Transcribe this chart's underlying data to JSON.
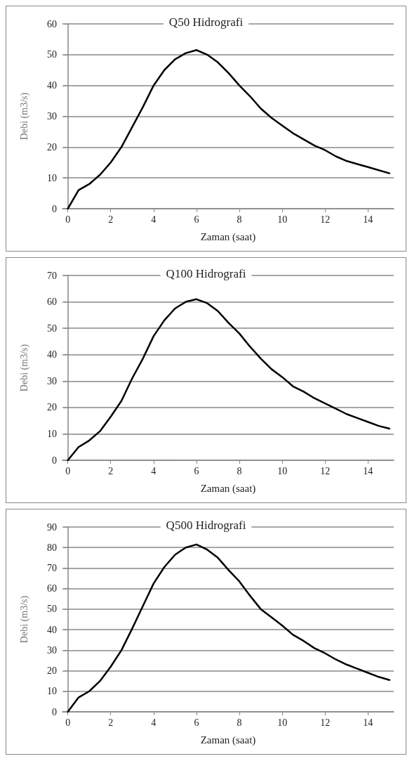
{
  "chart_data": [
    {
      "type": "line",
      "title": "Q50 Hidrografi",
      "xlabel": "Zaman (saat)",
      "ylabel": "Debi (m3/s)",
      "color": "#000000",
      "grid": "y",
      "xlim": [
        -0.25,
        15.2
      ],
      "xticks": [
        0,
        2,
        4,
        6,
        8,
        10,
        12,
        14
      ],
      "ylim": [
        0,
        60
      ],
      "yticks": [
        0,
        10,
        20,
        30,
        40,
        50,
        60
      ],
      "x": [
        0,
        0.5,
        1,
        1.5,
        2,
        2.5,
        3,
        3.5,
        4,
        4.5,
        5,
        5.5,
        6,
        6.5,
        7,
        7.5,
        8,
        8.5,
        9,
        9.5,
        10,
        10.5,
        11,
        11.5,
        12,
        12.5,
        13,
        13.5,
        14,
        14.5,
        15
      ],
      "values": [
        0,
        6,
        8,
        11,
        15,
        20,
        26.5,
        33,
        40,
        45,
        48.5,
        50.5,
        51.5,
        50,
        47.5,
        44,
        40,
        36.5,
        32.5,
        29.5,
        27,
        24.5,
        22.5,
        20.5,
        19,
        17,
        15.5,
        14.5,
        13.5,
        12.5,
        11.5
      ]
    },
    {
      "type": "line",
      "title": "Q100 Hidrografi",
      "xlabel": "Zaman (saat)",
      "ylabel": "Debi (m3/s)",
      "color": "#000000",
      "grid": "y",
      "xlim": [
        -0.25,
        15.2
      ],
      "xticks": [
        0,
        2,
        4,
        6,
        8,
        10,
        12,
        14
      ],
      "ylim": [
        0,
        70
      ],
      "yticks": [
        0,
        10,
        20,
        30,
        40,
        50,
        60,
        70
      ],
      "x": [
        0,
        0.5,
        1,
        1.5,
        2,
        2.5,
        3,
        3.5,
        4,
        4.5,
        5,
        5.5,
        6,
        6.5,
        7,
        7.5,
        8,
        8.5,
        9,
        9.5,
        10,
        10.5,
        11,
        11.5,
        12,
        12.5,
        13,
        13.5,
        14,
        14.5,
        15
      ],
      "values": [
        0,
        5,
        7.5,
        11,
        16.5,
        22.5,
        31,
        38.5,
        47,
        53,
        57.5,
        60,
        61,
        59.5,
        56.5,
        52,
        48,
        43,
        38.5,
        34.5,
        31.5,
        28,
        26,
        23.5,
        21.5,
        19.5,
        17.5,
        16,
        14.5,
        13,
        12
      ]
    },
    {
      "type": "line",
      "title": "Q500 Hidrografi",
      "xlabel": "Zaman (saat)",
      "ylabel": "Debi (m3/s)",
      "color": "#000000",
      "grid": "y",
      "xlim": [
        -0.25,
        15.2
      ],
      "xticks": [
        0,
        2,
        4,
        6,
        8,
        10,
        12,
        14
      ],
      "ylim": [
        0,
        90
      ],
      "yticks": [
        0,
        10,
        20,
        30,
        40,
        50,
        60,
        70,
        80,
        90
      ],
      "x": [
        0,
        0.5,
        1,
        1.5,
        2,
        2.5,
        3,
        3.5,
        4,
        4.5,
        5,
        5.5,
        6,
        6.5,
        7,
        7.5,
        8,
        8.5,
        9,
        9.5,
        10,
        10.5,
        11,
        11.5,
        12,
        12.5,
        13,
        13.5,
        14,
        14.5,
        15
      ],
      "values": [
        0,
        7,
        10,
        15,
        22,
        30,
        40.5,
        51.5,
        62.5,
        70.5,
        76.5,
        80,
        81.5,
        79,
        75,
        69,
        63.5,
        56.5,
        50,
        46,
        42,
        37.5,
        34.5,
        31,
        28.5,
        25.5,
        23,
        21,
        19,
        17,
        15.5
      ]
    }
  ]
}
